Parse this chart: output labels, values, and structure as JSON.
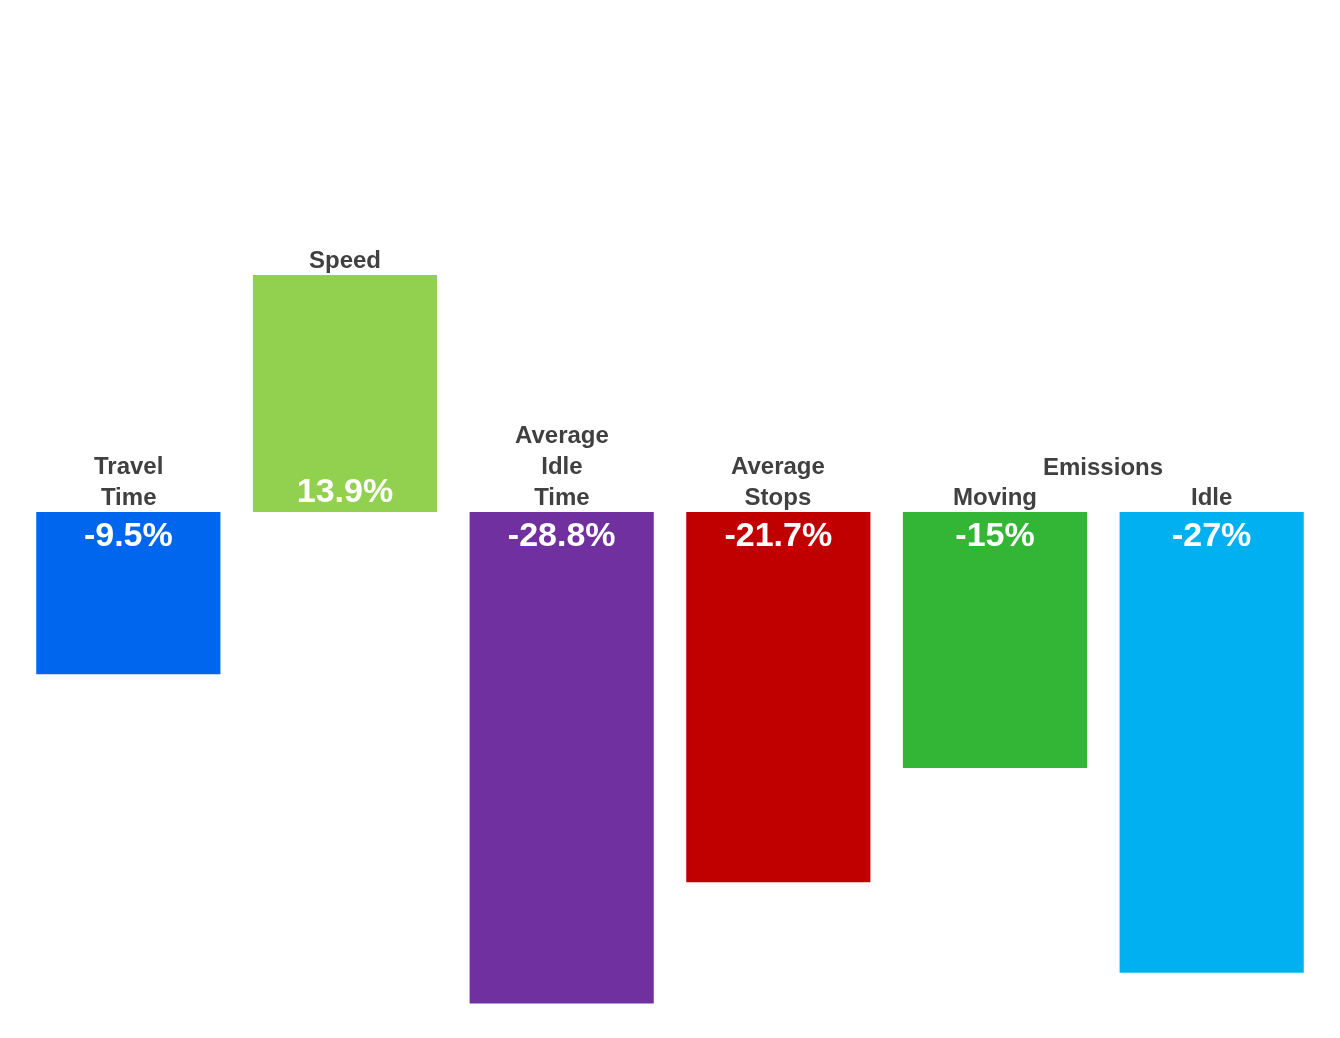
{
  "chart_data": {
    "type": "bar",
    "categories": [
      "Travel Time",
      "Speed",
      "Average Idle Time",
      "Average Stops",
      "Moving",
      "Idle"
    ],
    "values": [
      -9.5,
      13.9,
      -28.8,
      -21.7,
      -15,
      -27
    ],
    "colors": [
      "#0066ee",
      "#92d050",
      "#7030a0",
      "#c00000",
      "#33b535",
      "#00b0f0"
    ],
    "value_labels": [
      "-9.5%",
      "13.9%",
      "-28.8%",
      "-21.7%",
      "-15%",
      "-27%"
    ],
    "annotations": [
      "Emissions"
    ],
    "tick_labels": false
  }
}
